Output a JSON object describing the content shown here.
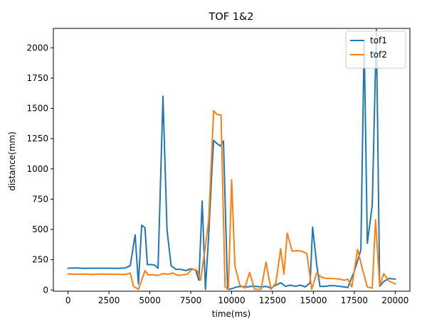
{
  "chart_data": {
    "type": "line",
    "title": "TOF 1&2",
    "xlabel": "time(ms)",
    "ylabel": "distance(mm)",
    "xlim": [
      -900,
      20900
    ],
    "ylim": [
      -10,
      2160
    ],
    "xticks": [
      0,
      2500,
      5000,
      7500,
      10000,
      12500,
      15000,
      17500,
      20000
    ],
    "yticks": [
      0,
      250,
      500,
      750,
      1000,
      1250,
      1500,
      1750,
      2000
    ],
    "grid": false,
    "legend": "top-right",
    "series": [
      {
        "name": "tof1",
        "color": "#1f77b4",
        "points": [
          [
            0,
            180
          ],
          [
            500,
            182
          ],
          [
            1000,
            178
          ],
          [
            1500,
            180
          ],
          [
            2000,
            180
          ],
          [
            2500,
            180
          ],
          [
            3000,
            178
          ],
          [
            3500,
            182
          ],
          [
            3800,
            200
          ],
          [
            4100,
            455
          ],
          [
            4300,
            50
          ],
          [
            4500,
            535
          ],
          [
            4700,
            515
          ],
          [
            4850,
            210
          ],
          [
            5100,
            210
          ],
          [
            5300,
            205
          ],
          [
            5500,
            180
          ],
          [
            5800,
            1600
          ],
          [
            6050,
            495
          ],
          [
            6300,
            200
          ],
          [
            6600,
            170
          ],
          [
            6900,
            170
          ],
          [
            7200,
            160
          ],
          [
            7500,
            175
          ],
          [
            7800,
            165
          ],
          [
            8000,
            80
          ],
          [
            8200,
            735
          ],
          [
            8400,
            5
          ],
          [
            8600,
            460
          ],
          [
            8800,
            1000
          ],
          [
            8900,
            1235
          ],
          [
            9100,
            1210
          ],
          [
            9300,
            1190
          ],
          [
            9500,
            1230
          ],
          [
            9750,
            5
          ],
          [
            10000,
            10
          ],
          [
            10300,
            25
          ],
          [
            10600,
            30
          ],
          [
            10900,
            25
          ],
          [
            11200,
            30
          ],
          [
            11500,
            30
          ],
          [
            11800,
            25
          ],
          [
            12100,
            30
          ],
          [
            12400,
            15
          ],
          [
            12700,
            40
          ],
          [
            13000,
            60
          ],
          [
            13300,
            30
          ],
          [
            13600,
            40
          ],
          [
            13900,
            30
          ],
          [
            14200,
            40
          ],
          [
            14500,
            25
          ],
          [
            14800,
            60
          ],
          [
            14950,
            520
          ],
          [
            15200,
            210
          ],
          [
            15400,
            30
          ],
          [
            15700,
            30
          ],
          [
            16000,
            35
          ],
          [
            16300,
            35
          ],
          [
            16600,
            30
          ],
          [
            16900,
            25
          ],
          [
            17100,
            20
          ],
          [
            17500,
            155
          ],
          [
            17900,
            330
          ],
          [
            18100,
            2060
          ],
          [
            18300,
            385
          ],
          [
            18600,
            700
          ],
          [
            18850,
            2150
          ],
          [
            19050,
            30
          ],
          [
            19300,
            70
          ],
          [
            19600,
            95
          ],
          [
            20000,
            90
          ]
        ]
      },
      {
        "name": "tof2",
        "color": "#ff7f0e",
        "points": [
          [
            0,
            132
          ],
          [
            500,
            130
          ],
          [
            1000,
            132
          ],
          [
            1500,
            128
          ],
          [
            2000,
            132
          ],
          [
            2500,
            130
          ],
          [
            3000,
            130
          ],
          [
            3500,
            128
          ],
          [
            3800,
            140
          ],
          [
            4000,
            30
          ],
          [
            4300,
            5
          ],
          [
            4700,
            160
          ],
          [
            4900,
            125
          ],
          [
            5200,
            125
          ],
          [
            5500,
            120
          ],
          [
            5800,
            135
          ],
          [
            6100,
            130
          ],
          [
            6400,
            140
          ],
          [
            6700,
            120
          ],
          [
            7000,
            125
          ],
          [
            7300,
            130
          ],
          [
            7600,
            175
          ],
          [
            7900,
            160
          ],
          [
            8100,
            80
          ],
          [
            8400,
            360
          ],
          [
            8600,
            580
          ],
          [
            8900,
            1480
          ],
          [
            9100,
            1450
          ],
          [
            9350,
            1445
          ],
          [
            9600,
            25
          ],
          [
            9800,
            5
          ],
          [
            10000,
            910
          ],
          [
            10200,
            200
          ],
          [
            10500,
            40
          ],
          [
            10800,
            15
          ],
          [
            11100,
            145
          ],
          [
            11400,
            5
          ],
          [
            11800,
            5
          ],
          [
            12100,
            230
          ],
          [
            12400,
            5
          ],
          [
            12700,
            55
          ],
          [
            13000,
            340
          ],
          [
            13200,
            130
          ],
          [
            13400,
            470
          ],
          [
            13700,
            320
          ],
          [
            14000,
            325
          ],
          [
            14300,
            320
          ],
          [
            14600,
            300
          ],
          [
            14900,
            5
          ],
          [
            15200,
            140
          ],
          [
            15500,
            105
          ],
          [
            15800,
            95
          ],
          [
            16200,
            95
          ],
          [
            16600,
            90
          ],
          [
            16900,
            80
          ],
          [
            17100,
            90
          ],
          [
            17350,
            25
          ],
          [
            17700,
            335
          ],
          [
            18000,
            170
          ],
          [
            18300,
            25
          ],
          [
            18600,
            15
          ],
          [
            18800,
            580
          ],
          [
            19050,
            35
          ],
          [
            19300,
            135
          ],
          [
            19600,
            75
          ],
          [
            20000,
            50
          ]
        ]
      }
    ]
  }
}
